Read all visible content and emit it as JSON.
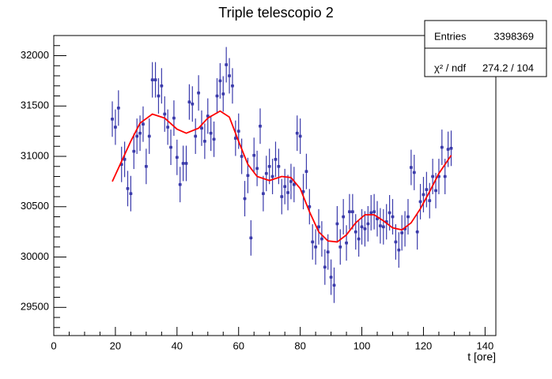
{
  "chart_data": {
    "type": "errorbar",
    "title": "Triple telescopio 2",
    "x_label": "t [ore]",
    "xlim": [
      0,
      143.5
    ],
    "ylim": [
      29220,
      32200
    ],
    "xticks": [
      0,
      20,
      40,
      60,
      80,
      100,
      120,
      140
    ],
    "yticks": [
      29500,
      30000,
      30500,
      31000,
      31500,
      32000
    ],
    "stats": [
      {
        "label": "Entries",
        "value": "3398369"
      },
      {
        "label": "χ² / ndf",
        "value": "274.2 / 104"
      }
    ],
    "series": [
      {
        "type": "errorbar",
        "color": "#3b3bab",
        "x": [
          19,
          20,
          21,
          22,
          23,
          24,
          25,
          26,
          27,
          28,
          29,
          30,
          31,
          32,
          33,
          34,
          35,
          36,
          37,
          38,
          39,
          40,
          41,
          42,
          43,
          44,
          45,
          46,
          47,
          48,
          49,
          50,
          51,
          52,
          53,
          54,
          55,
          56,
          57,
          58,
          59,
          60,
          61,
          62,
          63,
          64,
          65,
          66,
          67,
          68,
          69,
          70,
          71,
          72,
          73,
          74,
          75,
          76,
          77,
          78,
          79,
          80,
          81,
          82,
          83,
          84,
          85,
          86,
          87,
          88,
          89,
          90,
          91,
          92,
          93,
          94,
          95,
          96,
          97,
          98,
          99,
          100,
          101,
          102,
          103,
          104,
          105,
          106,
          107,
          108,
          109,
          110,
          111,
          112,
          113,
          114,
          115,
          116,
          117,
          118,
          119,
          120,
          121,
          122,
          123,
          124,
          125,
          126,
          127,
          128,
          129
        ],
        "values": [
          31370,
          31290,
          31480,
          30920,
          30970,
          30680,
          30630,
          31050,
          31200,
          31230,
          31320,
          30900,
          31200,
          31760,
          31760,
          31600,
          31700,
          31420,
          31290,
          31090,
          31380,
          30990,
          30720,
          30930,
          30930,
          31540,
          31520,
          31200,
          31630,
          31280,
          31150,
          31400,
          31230,
          31170,
          31600,
          31750,
          31620,
          31910,
          31800,
          31700,
          31180,
          31250,
          31000,
          30580,
          30810,
          30190,
          31010,
          30880,
          31300,
          30630,
          30830,
          30900,
          30800,
          30970,
          30900,
          30600,
          30700,
          30640,
          30750,
          30720,
          31230,
          31200,
          30650,
          30850,
          30500,
          30150,
          30100,
          30300,
          30180,
          29900,
          30050,
          29800,
          29720,
          30330,
          30100,
          30400,
          30140,
          30450,
          30450,
          30250,
          30180,
          30300,
          30280,
          30330,
          30440,
          30450,
          30380,
          30310,
          30300,
          30350,
          30440,
          30400,
          30150,
          30070,
          30240,
          30280,
          30400,
          30890,
          30840,
          30250,
          30550,
          30620,
          30670,
          30560,
          30800,
          30660,
          30800,
          31090,
          30800,
          31070,
          31080
        ],
        "errors": [
          176,
          176,
          176,
          176,
          176,
          176,
          176,
          176,
          176,
          176,
          176,
          176,
          176,
          176,
          176,
          176,
          176,
          176,
          176,
          176,
          176,
          176,
          176,
          176,
          176,
          176,
          176,
          176,
          176,
          176,
          176,
          176,
          176,
          176,
          176,
          176,
          176,
          176,
          176,
          176,
          176,
          176,
          176,
          176,
          176,
          176,
          176,
          176,
          176,
          176,
          176,
          176,
          176,
          176,
          176,
          176,
          176,
          176,
          176,
          176,
          176,
          176,
          176,
          176,
          176,
          176,
          176,
          176,
          176,
          176,
          176,
          176,
          176,
          176,
          176,
          176,
          176,
          176,
          176,
          176,
          176,
          176,
          176,
          176,
          176,
          176,
          176,
          176,
          176,
          176,
          176,
          176,
          176,
          176,
          176,
          176,
          176,
          176,
          176,
          176,
          176,
          176,
          176,
          176,
          176,
          176,
          176,
          176,
          176,
          176,
          176
        ]
      },
      {
        "type": "line",
        "color": "#ff0000",
        "x": [
          19,
          22,
          25,
          28,
          32,
          36,
          40,
          43,
          47,
          50,
          54,
          57,
          60,
          63,
          66,
          70,
          74,
          77,
          80,
          83,
          86,
          89,
          92,
          95,
          98,
          101,
          104,
          107,
          110,
          113,
          116,
          119,
          122,
          125,
          129
        ],
        "values": [
          30750,
          30950,
          31150,
          31330,
          31420,
          31380,
          31270,
          31230,
          31280,
          31380,
          31450,
          31390,
          31150,
          30920,
          30800,
          30760,
          30800,
          30790,
          30680,
          30450,
          30250,
          30160,
          30150,
          30220,
          30340,
          30420,
          30420,
          30360,
          30290,
          30270,
          30340,
          30480,
          30650,
          30830,
          31010
        ]
      }
    ]
  }
}
